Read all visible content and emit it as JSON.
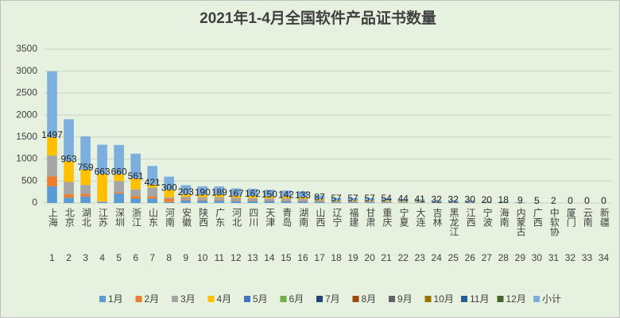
{
  "chart_data": {
    "type": "bar",
    "stacked": true,
    "title": "2021年1-4月全国软件产品证书数量",
    "categories": [
      "上海",
      "北京",
      "湖北",
      "江苏",
      "深圳",
      "浙江",
      "山东",
      "河南",
      "安徽",
      "陕西",
      "广东",
      "河北",
      "四川",
      "天津",
      "青岛",
      "湖南",
      "山西",
      "辽宁",
      "福建",
      "甘肃",
      "重庆",
      "宁夏",
      "大连",
      "吉林",
      "黑龙江",
      "江西",
      "宁波",
      "海南",
      "内蒙古",
      "广西",
      "中软协",
      "厦门",
      "云南",
      "新疆"
    ],
    "ranks": [
      1,
      2,
      3,
      4,
      5,
      6,
      7,
      8,
      9,
      10,
      11,
      12,
      13,
      14,
      15,
      16,
      17,
      18,
      19,
      20,
      21,
      22,
      23,
      24,
      25,
      26,
      27,
      28,
      29,
      30,
      31,
      32,
      33,
      34
    ],
    "ylim": [
      0,
      3500
    ],
    "yticks": [
      0,
      500,
      1000,
      1500,
      2000,
      2500,
      3000,
      3500
    ],
    "grid": true,
    "legend": "bottom",
    "series": [
      {
        "name": "1月",
        "color": "#5b9bd5",
        "values": [
          380,
          120,
          150,
          20,
          220,
          100,
          100,
          20,
          60,
          57,
          57,
          50,
          49,
          45,
          43,
          40,
          26,
          17,
          17,
          17,
          16,
          13,
          12,
          10,
          10,
          9,
          6,
          5,
          3,
          2,
          1,
          0,
          0,
          0
        ]
      },
      {
        "name": "2月",
        "color": "#ed7d31",
        "values": [
          230,
          80,
          60,
          10,
          30,
          60,
          50,
          80,
          20,
          19,
          19,
          17,
          16,
          15,
          14,
          13,
          9,
          6,
          6,
          6,
          5,
          4,
          4,
          3,
          3,
          3,
          2,
          2,
          1,
          0,
          0,
          0,
          0,
          0
        ]
      },
      {
        "name": "3月",
        "color": "#a5a5a5",
        "values": [
          470,
          280,
          200,
          10,
          250,
          150,
          200,
          30,
          60,
          57,
          57,
          50,
          49,
          45,
          43,
          40,
          26,
          17,
          17,
          17,
          16,
          13,
          12,
          10,
          10,
          9,
          6,
          5,
          3,
          2,
          1,
          0,
          0,
          0
        ]
      },
      {
        "name": "4月",
        "color": "#ffc000",
        "values": [
          417,
          473,
          349,
          623,
          160,
          251,
          71,
          170,
          63,
          57,
          56,
          50,
          48,
          45,
          42,
          40,
          26,
          17,
          17,
          17,
          17,
          14,
          13,
          9,
          9,
          9,
          6,
          6,
          2,
          1,
          0,
          0,
          0,
          0
        ]
      },
      {
        "name": "5月",
        "color": "#4472c4",
        "values": [
          0,
          0,
          0,
          0,
          0,
          0,
          0,
          0,
          0,
          0,
          0,
          0,
          0,
          0,
          0,
          0,
          0,
          0,
          0,
          0,
          0,
          0,
          0,
          0,
          0,
          0,
          0,
          0,
          0,
          0,
          0,
          0,
          0,
          0
        ]
      },
      {
        "name": "6月",
        "color": "#70ad47",
        "values": [
          0,
          0,
          0,
          0,
          0,
          0,
          0,
          0,
          0,
          0,
          0,
          0,
          0,
          0,
          0,
          0,
          0,
          0,
          0,
          0,
          0,
          0,
          0,
          0,
          0,
          0,
          0,
          0,
          0,
          0,
          0,
          0,
          0,
          0
        ]
      },
      {
        "name": "7月",
        "color": "#264478",
        "values": [
          0,
          0,
          0,
          0,
          0,
          0,
          0,
          0,
          0,
          0,
          0,
          0,
          0,
          0,
          0,
          0,
          0,
          0,
          0,
          0,
          0,
          0,
          0,
          0,
          0,
          0,
          0,
          0,
          0,
          0,
          0,
          0,
          0,
          0
        ]
      },
      {
        "name": "8月",
        "color": "#9e480e",
        "values": [
          0,
          0,
          0,
          0,
          0,
          0,
          0,
          0,
          0,
          0,
          0,
          0,
          0,
          0,
          0,
          0,
          0,
          0,
          0,
          0,
          0,
          0,
          0,
          0,
          0,
          0,
          0,
          0,
          0,
          0,
          0,
          0,
          0,
          0
        ]
      },
      {
        "name": "9月",
        "color": "#636363",
        "values": [
          0,
          0,
          0,
          0,
          0,
          0,
          0,
          0,
          0,
          0,
          0,
          0,
          0,
          0,
          0,
          0,
          0,
          0,
          0,
          0,
          0,
          0,
          0,
          0,
          0,
          0,
          0,
          0,
          0,
          0,
          0,
          0,
          0,
          0
        ]
      },
      {
        "name": "10月",
        "color": "#997300",
        "values": [
          0,
          0,
          0,
          0,
          0,
          0,
          0,
          0,
          0,
          0,
          0,
          0,
          0,
          0,
          0,
          0,
          0,
          0,
          0,
          0,
          0,
          0,
          0,
          0,
          0,
          0,
          0,
          0,
          0,
          0,
          0,
          0,
          0,
          0
        ]
      },
      {
        "name": "11月",
        "color": "#255e91",
        "values": [
          0,
          0,
          0,
          0,
          0,
          0,
          0,
          0,
          0,
          0,
          0,
          0,
          0,
          0,
          0,
          0,
          0,
          0,
          0,
          0,
          0,
          0,
          0,
          0,
          0,
          0,
          0,
          0,
          0,
          0,
          0,
          0,
          0,
          0
        ]
      },
      {
        "name": "12月",
        "color": "#43682b",
        "values": [
          0,
          0,
          0,
          0,
          0,
          0,
          0,
          0,
          0,
          0,
          0,
          0,
          0,
          0,
          0,
          0,
          0,
          0,
          0,
          0,
          0,
          0,
          0,
          0,
          0,
          0,
          0,
          0,
          0,
          0,
          0,
          0,
          0,
          0
        ]
      },
      {
        "name": "小计",
        "color": "#7cafdd",
        "data_labels": true,
        "values": [
          1497,
          953,
          759,
          663,
          660,
          561,
          421,
          300,
          203,
          190,
          189,
          167,
          162,
          150,
          142,
          133,
          87,
          57,
          57,
          57,
          54,
          44,
          41,
          32,
          32,
          30,
          20,
          18,
          9,
          5,
          2,
          0,
          0,
          0
        ]
      }
    ]
  }
}
